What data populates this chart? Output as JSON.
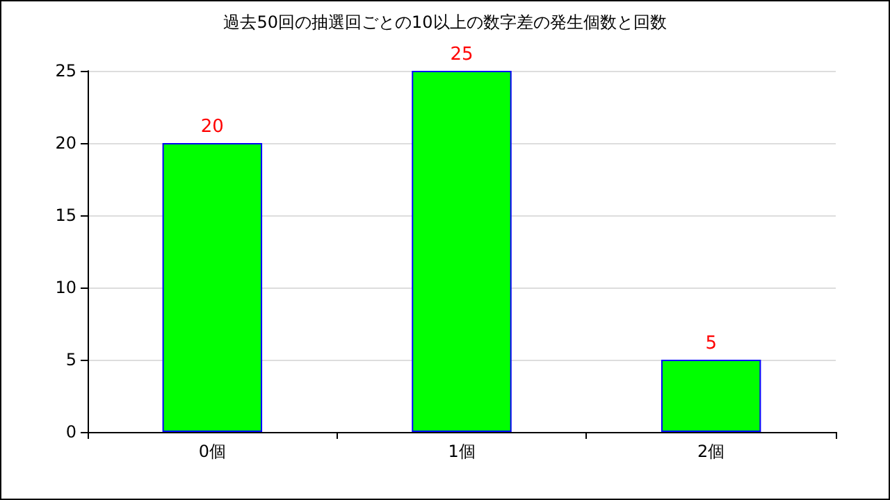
{
  "chart_data": {
    "type": "bar",
    "title": "過去50回の抽選回ごとの10以上の数字差の発生個数と回数",
    "categories": [
      "0個",
      "1個",
      "2個"
    ],
    "series": [
      {
        "color": "#00ff00",
        "values": [
          20,
          25,
          5
        ]
      }
    ],
    "ylim": [
      0,
      25
    ],
    "yticks": [
      0,
      5,
      10,
      15,
      20,
      25
    ],
    "grid": "y",
    "data_labels": true
  }
}
